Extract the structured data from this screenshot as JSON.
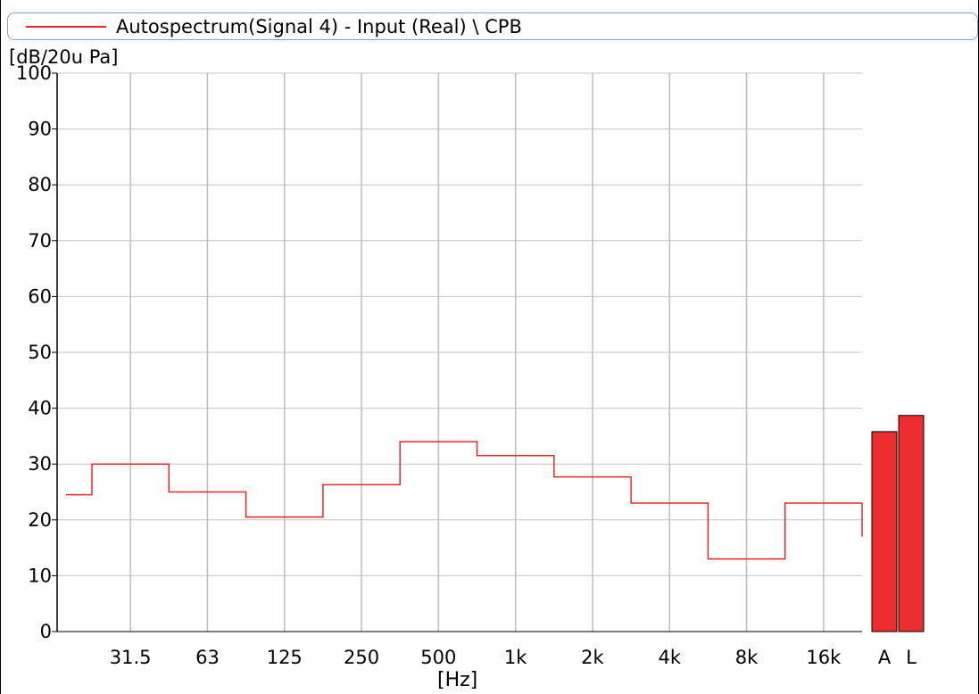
{
  "legend": {
    "label": "Autospectrum(Signal 4) - Input (Real) \\ CPB",
    "color": "#e8262a"
  },
  "axes": {
    "y_unit": "[dB/20u Pa]",
    "x_unit": "[Hz]"
  },
  "chart_data": {
    "type": "line",
    "title": "",
    "legend_label": "Autospectrum(Signal 4) - Input (Real) \\ CPB",
    "ylabel": "[dB/20u Pa]",
    "xlabel": "[Hz]",
    "ylim": [
      0,
      100
    ],
    "y_ticks": [
      "0",
      "10",
      "20",
      "30",
      "40",
      "50",
      "60",
      "70",
      "80",
      "90",
      "100"
    ],
    "x_tick_labels": [
      "31.5",
      "63",
      "125",
      "250",
      "500",
      "1k",
      "2k",
      "4k",
      "8k",
      "16k"
    ],
    "grid": true,
    "series": [
      {
        "name": "Autospectrum(Signal 4) - Input (Real) \\ CPB",
        "style": "step",
        "color": "#e8262a",
        "values": [
          24.5,
          30.0,
          30.0,
          25.0,
          25.0,
          20.5,
          20.5,
          26.3,
          26.3,
          34.0,
          34.0,
          31.5,
          31.5,
          27.7,
          27.7,
          23.0,
          23.0,
          13.0,
          13.0,
          23.0,
          23.0
        ]
      }
    ],
    "bars": {
      "categories": [
        "A",
        "L"
      ],
      "values": [
        35.8,
        38.7
      ],
      "color": "#ee2e2e"
    }
  }
}
